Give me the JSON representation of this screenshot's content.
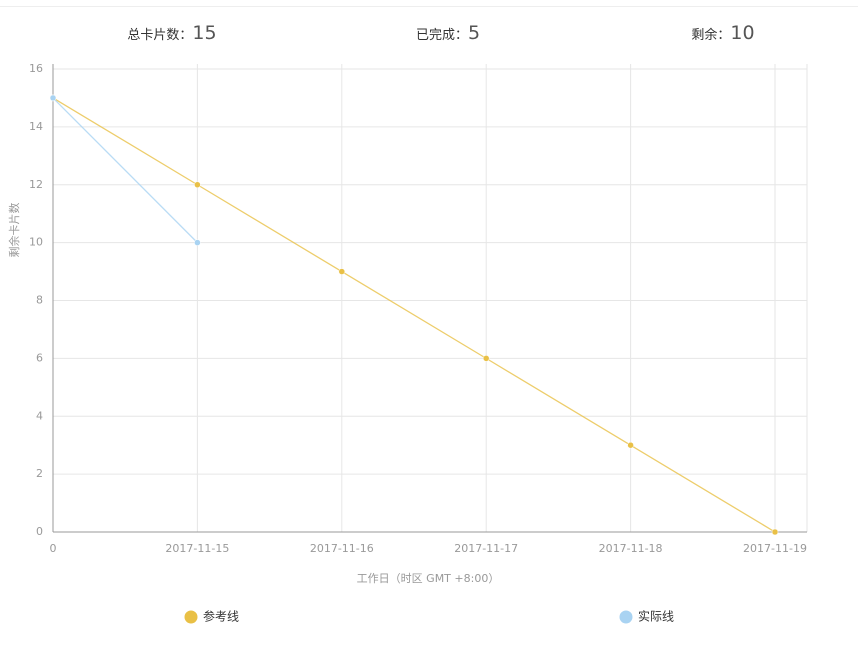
{
  "chart_data": {
    "type": "line",
    "summary": [
      {
        "label": "总卡片数：",
        "value": 15
      },
      {
        "label": "已完成：",
        "value": 5
      },
      {
        "label": "剩余：",
        "value": 10
      }
    ],
    "y_label": "剩余卡片数",
    "x_label": "工作日（时区 GMT +8:00）",
    "categories": [
      "0",
      "2017-11-15",
      "2017-11-16",
      "2017-11-17",
      "2017-11-18",
      "2017-11-19"
    ],
    "series": [
      {
        "name": "参考线",
        "color": "#e9c046",
        "values": [
          15,
          12,
          9,
          6,
          3,
          0
        ]
      },
      {
        "name": "实际线",
        "color": "#a9d3f2",
        "values": [
          15,
          10,
          null,
          null,
          null,
          null
        ]
      }
    ],
    "ylim": [
      0,
      16
    ],
    "yticks": [
      0,
      2,
      4,
      6,
      8,
      10,
      12,
      14,
      16
    ],
    "grid": true
  }
}
